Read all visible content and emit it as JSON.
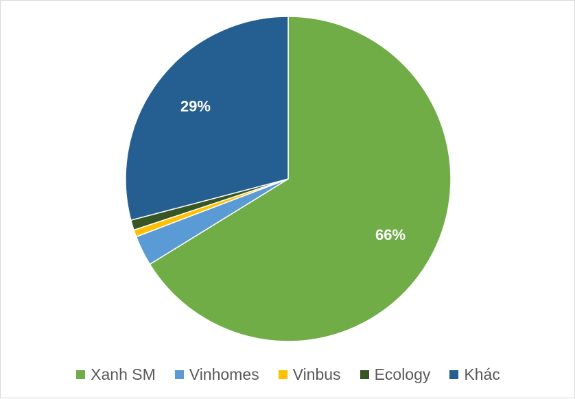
{
  "chart_data": {
    "type": "pie",
    "categories": [
      "Xanh SM",
      "Vinhomes",
      "Vinbus",
      "Ecology",
      "Khác"
    ],
    "values": [
      66,
      3,
      0.7,
      1,
      29
    ],
    "data_labels": [
      "66%",
      "",
      "",
      "",
      "29%"
    ],
    "colors": [
      "#70ad47",
      "#5b9bd5",
      "#ffc000",
      "#375623",
      "#255e91"
    ],
    "legend_position": "bottom",
    "start_angle": "top, clockwise"
  }
}
